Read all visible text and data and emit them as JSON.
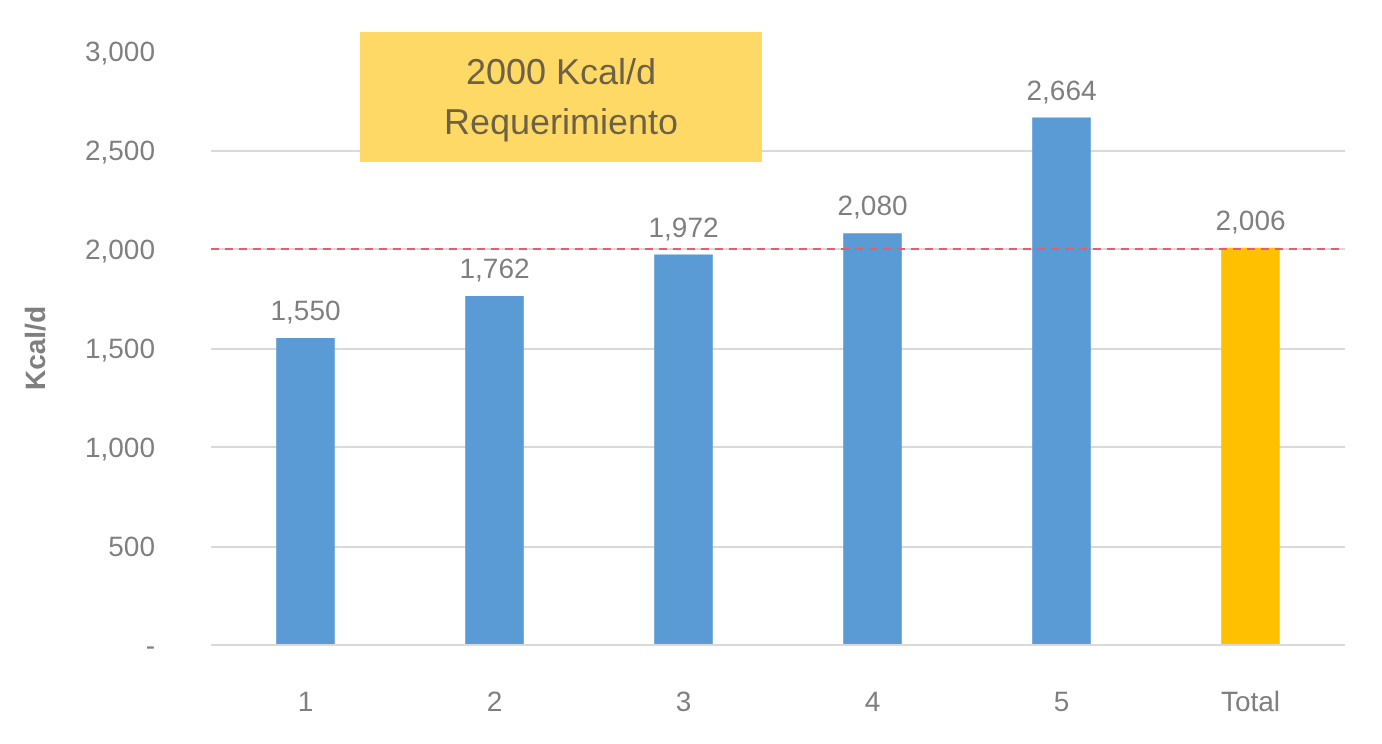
{
  "chart_data": {
    "type": "bar",
    "ylabel": "Kcal/d",
    "categories": [
      "1",
      "2",
      "3",
      "4",
      "5",
      "Total"
    ],
    "values": [
      1550,
      1762,
      1972,
      2080,
      2664,
      2006
    ],
    "value_labels": [
      "1,550",
      "1,762",
      "1,972",
      "2,080",
      "2,664",
      "2,006"
    ],
    "colors": [
      "#5b9bd5",
      "#5b9bd5",
      "#5b9bd5",
      "#5b9bd5",
      "#5b9bd5",
      "#ffc000"
    ],
    "ylim": [
      0,
      3000
    ],
    "yticks": [
      {
        "value": 0,
        "label": "-"
      },
      500,
      {
        "value": 1000,
        "label": "1,000"
      },
      {
        "value": 1500,
        "label": "1,500"
      },
      {
        "value": 2000,
        "label": "2,000"
      },
      {
        "value": 2500,
        "label": "2,500"
      },
      {
        "value": 3000,
        "label": "3,000"
      }
    ],
    "grid": "y",
    "ref_lines": [
      {
        "axis": "y",
        "value": 2000,
        "color": "#e06070",
        "line_style": "dashed"
      }
    ],
    "annotations": [
      "2000 Kcal/d\nRequerimiento"
    ]
  }
}
